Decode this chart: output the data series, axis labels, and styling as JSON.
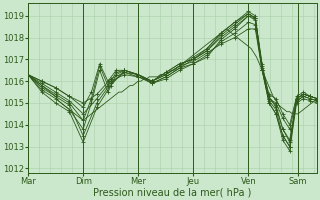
{
  "bg_color": "#cce8cc",
  "line_color": "#2d5a1b",
  "grid_color": "#aad0aa",
  "xlabel": "Pression niveau de la mer( hPa )",
  "ylim": [
    1011.8,
    1019.6
  ],
  "yticks": [
    1012,
    1013,
    1014,
    1015,
    1016,
    1017,
    1018,
    1019
  ],
  "day_labels": [
    "Mar",
    "Dim",
    "Mer",
    "Jeu",
    "Ven",
    "Sam"
  ],
  "day_positions": [
    0,
    40,
    80,
    120,
    160,
    196
  ],
  "xlim": [
    0,
    210
  ],
  "series": [
    {
      "x": [
        0,
        2,
        4,
        6,
        8,
        10,
        12,
        14,
        16,
        18,
        20,
        22,
        24,
        26,
        28,
        30,
        32,
        34,
        36,
        38,
        40,
        42,
        44,
        46,
        48,
        50,
        52,
        54,
        56,
        58,
        60,
        62,
        64,
        66,
        68,
        70,
        72,
        74,
        76,
        78,
        80,
        82,
        84,
        86,
        88,
        90,
        92,
        94,
        96,
        98,
        100,
        102,
        104,
        106,
        108,
        110,
        112,
        114,
        116,
        118,
        120,
        122,
        124,
        126,
        128,
        130,
        132,
        134,
        136,
        138,
        140,
        142,
        144,
        146,
        148,
        150,
        152,
        154,
        156,
        158,
        160,
        162,
        164,
        166,
        168,
        170,
        172,
        174,
        176,
        178,
        180,
        182,
        184,
        186,
        188,
        190,
        192,
        194,
        196,
        198,
        200,
        202,
        204,
        206,
        208,
        210
      ],
      "y": [
        1016.3,
        1016.2,
        1016.1,
        1016.0,
        1015.9,
        1015.8,
        1015.7,
        1015.6,
        1015.5,
        1015.4,
        1015.3,
        1015.1,
        1015.0,
        1014.9,
        1014.8,
        1014.7,
        1014.6,
        1014.5,
        1014.4,
        1014.3,
        1014.2,
        1014.3,
        1014.4,
        1014.5,
        1014.6,
        1014.7,
        1014.8,
        1014.9,
        1015.0,
        1015.1,
        1015.2,
        1015.3,
        1015.4,
        1015.5,
        1015.5,
        1015.6,
        1015.7,
        1015.8,
        1015.8,
        1015.9,
        1016.0,
        1016.0,
        1016.1,
        1016.1,
        1016.2,
        1016.2,
        1016.2,
        1016.2,
        1016.3,
        1016.3,
        1016.3,
        1016.4,
        1016.5,
        1016.5,
        1016.6,
        1016.7,
        1016.8,
        1016.9,
        1017.0,
        1017.1,
        1017.2,
        1017.3,
        1017.4,
        1017.5,
        1017.6,
        1017.7,
        1017.8,
        1017.9,
        1018.0,
        1018.1,
        1018.2,
        1018.3,
        1018.4,
        1018.3,
        1018.2,
        1018.1,
        1018.0,
        1017.9,
        1017.8,
        1017.7,
        1017.6,
        1017.5,
        1017.3,
        1017.1,
        1016.8,
        1016.5,
        1016.2,
        1015.9,
        1015.6,
        1015.3,
        1015.1,
        1014.9,
        1014.8,
        1014.7,
        1014.6,
        1014.6,
        1014.5,
        1014.5,
        1014.5,
        1014.6,
        1014.7,
        1014.8,
        1014.9,
        1015.0,
        1015.1,
        1015.2
      ]
    },
    {
      "x": [
        0,
        10,
        20,
        30,
        40,
        50,
        60,
        70,
        80,
        90,
        100,
        110,
        120,
        130,
        140,
        150,
        160,
        165,
        170,
        175,
        180,
        185,
        190,
        195,
        200,
        205,
        210
      ],
      "y": [
        1016.3,
        1015.5,
        1015.0,
        1014.6,
        1013.2,
        1014.8,
        1015.8,
        1016.5,
        1016.3,
        1016.0,
        1016.4,
        1016.8,
        1017.0,
        1017.5,
        1018.2,
        1018.7,
        1019.2,
        1019.0,
        1016.5,
        1015.0,
        1014.5,
        1013.5,
        1013.0,
        1015.2,
        1015.4,
        1015.3,
        1015.2
      ]
    },
    {
      "x": [
        0,
        10,
        20,
        30,
        40,
        50,
        60,
        70,
        80,
        90,
        100,
        110,
        120,
        130,
        140,
        150,
        160,
        165,
        170,
        175,
        180,
        185,
        190,
        195,
        200,
        205,
        210
      ],
      "y": [
        1016.3,
        1015.7,
        1015.3,
        1014.9,
        1013.5,
        1015.0,
        1015.9,
        1016.4,
        1016.3,
        1016.0,
        1016.4,
        1016.8,
        1017.0,
        1017.4,
        1018.0,
        1018.5,
        1019.0,
        1018.9,
        1016.8,
        1015.3,
        1014.8,
        1013.8,
        1013.2,
        1015.1,
        1015.3,
        1015.2,
        1015.1
      ]
    },
    {
      "x": [
        0,
        10,
        20,
        30,
        40,
        50,
        60,
        70,
        80,
        90,
        100,
        110,
        120,
        130,
        140,
        150,
        160,
        165,
        170,
        175,
        180,
        185,
        190,
        195,
        200,
        205,
        210
      ],
      "y": [
        1016.3,
        1015.9,
        1015.5,
        1015.1,
        1014.5,
        1015.2,
        1016.0,
        1016.3,
        1016.2,
        1015.9,
        1016.2,
        1016.6,
        1016.8,
        1017.2,
        1017.8,
        1018.2,
        1018.7,
        1018.6,
        1016.5,
        1015.2,
        1015.0,
        1014.3,
        1013.8,
        1015.2,
        1015.4,
        1015.3,
        1015.2
      ]
    },
    {
      "x": [
        0,
        10,
        20,
        30,
        40,
        50,
        60,
        70,
        80,
        90,
        100,
        110,
        120,
        130,
        140,
        150,
        160,
        165,
        170,
        175,
        180,
        185,
        190,
        195,
        200,
        205,
        210
      ],
      "y": [
        1016.3,
        1016.0,
        1015.7,
        1015.3,
        1015.0,
        1015.4,
        1016.1,
        1016.4,
        1016.2,
        1016.0,
        1016.3,
        1016.7,
        1016.9,
        1017.3,
        1017.7,
        1018.0,
        1018.4,
        1018.4,
        1016.5,
        1015.4,
        1015.2,
        1014.5,
        1014.0,
        1015.3,
        1015.5,
        1015.3,
        1015.2
      ]
    },
    {
      "x": [
        0,
        10,
        20,
        30,
        40,
        46,
        52,
        58,
        64,
        70,
        80,
        90,
        100,
        110,
        120,
        130,
        140,
        150,
        160,
        165,
        170,
        175,
        180,
        185,
        190,
        195,
        200,
        205,
        210
      ],
      "y": [
        1016.3,
        1015.6,
        1015.2,
        1014.7,
        1013.8,
        1015.0,
        1016.5,
        1015.5,
        1016.3,
        1016.5,
        1016.3,
        1015.9,
        1016.1,
        1016.5,
        1016.8,
        1017.1,
        1017.9,
        1018.4,
        1019.0,
        1018.8,
        1016.5,
        1015.0,
        1014.5,
        1013.3,
        1012.8,
        1015.0,
        1015.2,
        1015.1,
        1015.0
      ]
    },
    {
      "x": [
        0,
        10,
        20,
        30,
        40,
        46,
        52,
        58,
        64,
        70,
        80,
        90,
        100,
        110,
        120,
        130,
        140,
        150,
        160,
        165,
        170,
        175,
        180,
        185,
        190,
        195,
        200,
        205,
        210
      ],
      "y": [
        1016.3,
        1015.8,
        1015.4,
        1015.0,
        1014.2,
        1015.2,
        1016.7,
        1015.8,
        1016.4,
        1016.5,
        1016.3,
        1015.9,
        1016.2,
        1016.6,
        1017.0,
        1017.4,
        1018.1,
        1018.6,
        1019.1,
        1018.9,
        1016.7,
        1015.1,
        1014.7,
        1013.5,
        1013.0,
        1015.1,
        1015.3,
        1015.2,
        1015.1
      ]
    },
    {
      "x": [
        0,
        10,
        20,
        30,
        40,
        46,
        52,
        58,
        64,
        70,
        80,
        90,
        100,
        110,
        120,
        130,
        140,
        150,
        160,
        165,
        170,
        175,
        180,
        185,
        190,
        195,
        200,
        205,
        210
      ],
      "y": [
        1016.3,
        1016.0,
        1015.7,
        1015.3,
        1014.8,
        1015.5,
        1016.8,
        1016.0,
        1016.5,
        1016.5,
        1016.3,
        1016.0,
        1016.3,
        1016.7,
        1017.1,
        1017.5,
        1018.2,
        1018.7,
        1019.1,
        1018.9,
        1016.6,
        1015.2,
        1014.9,
        1013.8,
        1013.3,
        1015.2,
        1015.4,
        1015.3,
        1015.2
      ]
    }
  ]
}
